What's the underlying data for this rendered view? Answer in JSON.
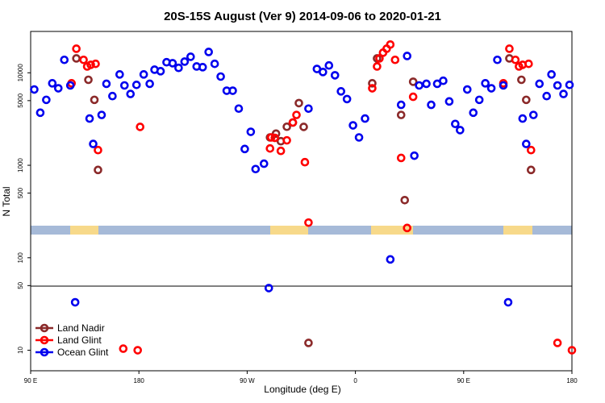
{
  "chart_data": {
    "type": "scatter",
    "title": "20S-15S August (Ver 9)   2014-09-06 to 2020-01-21",
    "x_label": "Longitude (deg E)",
    "y_label": "N Total",
    "xlim": [
      90,
      540
    ],
    "xticks": [
      {
        "value": 90,
        "label": "90 E"
      },
      180,
      {
        "value": 270,
        "label": "90 W"
      },
      {
        "value": 360,
        "label": "0"
      },
      {
        "value": 450,
        "label": "90 E"
      },
      {
        "value": 540,
        "label": "180"
      }
    ],
    "ylim": [
      6,
      28000
    ],
    "log_y": true,
    "yticks": [
      10,
      50,
      100,
      500,
      1000,
      5000,
      10000
    ],
    "legend": "bottom-left",
    "series": [
      {
        "name": "Land Nadir",
        "color": "#8b2a2a",
        "x": [
          128,
          138,
          143,
          146,
          289,
          294,
          298,
          303,
          308,
          313,
          317,
          321,
          374,
          378,
          398,
          401,
          408,
          488,
          498,
          502,
          506
        ],
        "values": [
          14300,
          8400,
          5100,
          890,
          2000,
          2200,
          1820,
          2610,
          2900,
          4700,
          2600,
          12,
          7700,
          14300,
          3500,
          420,
          8000,
          14300,
          8400,
          5100,
          890
        ]
      },
      {
        "name": "Land Glint",
        "color": "#ff0000",
        "x": [
          124,
          128,
          134,
          137,
          140,
          144,
          146,
          167,
          179,
          181,
          289,
          290,
          293,
          298,
          303,
          308,
          311,
          318,
          321,
          374,
          378,
          380,
          383,
          386,
          389,
          393,
          398,
          403,
          408,
          483,
          488,
          493,
          496,
          499,
          504,
          506,
          528,
          540
        ],
        "values": [
          7700,
          18200,
          13800,
          11700,
          12200,
          12500,
          1460,
          10.4,
          10,
          2600,
          1520,
          2000,
          1980,
          1430,
          1860,
          2900,
          3500,
          1080,
          240,
          6800,
          11700,
          14300,
          16500,
          18200,
          20200,
          13800,
          1200,
          210,
          5500,
          7700,
          18200,
          13800,
          11700,
          12200,
          12500,
          1460,
          12,
          10
        ]
      },
      {
        "name": "Ocean Glint",
        "color": "#0000ee",
        "x": [
          93,
          98,
          103,
          108,
          113,
          118,
          123,
          127,
          139,
          142,
          149,
          153,
          158,
          164,
          168,
          173,
          178,
          184,
          189,
          193,
          198,
          203,
          208,
          213,
          218,
          223,
          228,
          233,
          238,
          243,
          248,
          253,
          258,
          263,
          268,
          273,
          277,
          284,
          288,
          321,
          328,
          333,
          338,
          343,
          348,
          353,
          358,
          363,
          368,
          389,
          398,
          403,
          409,
          413,
          419,
          423,
          428,
          433,
          438,
          443,
          447,
          453,
          458,
          463,
          468,
          473,
          478,
          483,
          487,
          499,
          502,
          508,
          513,
          519,
          523,
          528,
          533,
          538
        ],
        "values": [
          6600,
          3700,
          5100,
          7700,
          6800,
          13800,
          7300,
          33,
          3200,
          1700,
          3500,
          7600,
          5600,
          9600,
          7300,
          5900,
          7400,
          9600,
          7600,
          10800,
          10400,
          13000,
          12700,
          11300,
          13200,
          14900,
          11700,
          11500,
          16800,
          12500,
          9100,
          6400,
          6400,
          4100,
          1500,
          2300,
          910,
          1040,
          47,
          4100,
          11000,
          10200,
          12000,
          9400,
          6300,
          5200,
          2700,
          2000,
          3200,
          96,
          4500,
          15200,
          1270,
          7300,
          7600,
          4500,
          7600,
          8200,
          4900,
          2800,
          2400,
          6600,
          3700,
          5100,
          7700,
          6800,
          13800,
          7300,
          33,
          3200,
          1700,
          3500,
          7600,
          5600,
          9600,
          7300,
          5900,
          7400
        ]
      }
    ]
  }
}
